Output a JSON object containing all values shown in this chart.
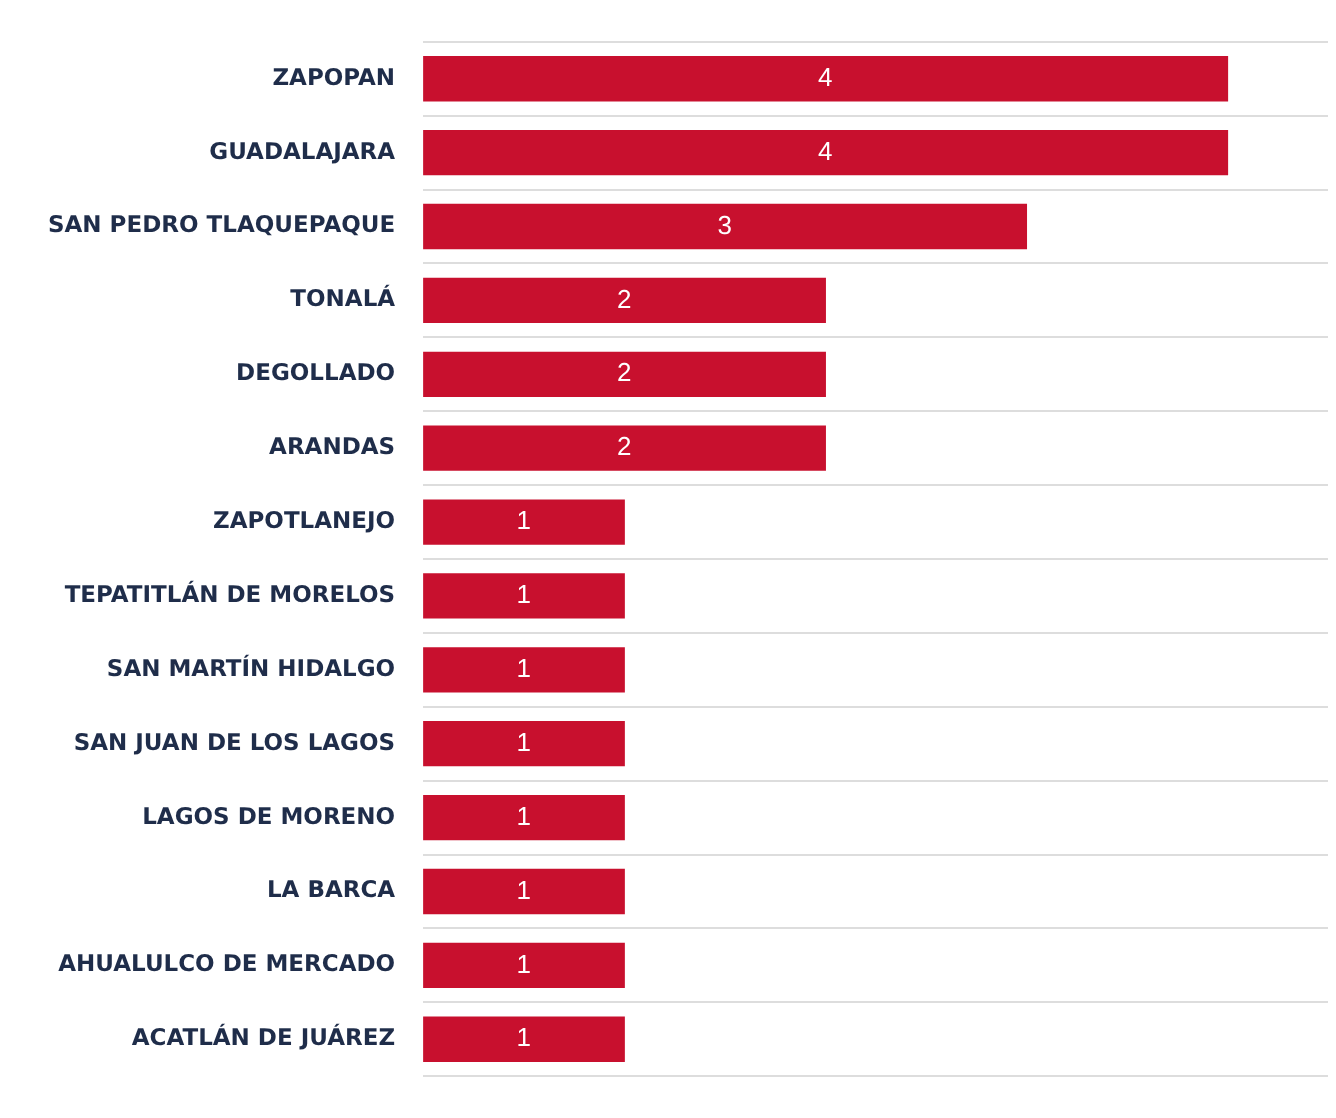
{
  "chart_data": {
    "type": "bar",
    "orientation": "horizontal",
    "categories": [
      "ZAPOPAN",
      "GUADALAJARA",
      "SAN PEDRO TLAQUEPAQUE",
      "TONALÁ",
      "DEGOLLADO",
      "ARANDAS",
      "ZAPOTLANEJO",
      "TEPATITLÁN DE MORELOS",
      "SAN MARTÍN HIDALGO",
      "SAN JUAN DE LOS LAGOS",
      "LAGOS DE MORENO",
      "LA BARCA",
      "AHUALULCO DE MERCADO",
      "ACATLÁN DE JUÁREZ"
    ],
    "values": [
      4,
      4,
      3,
      2,
      2,
      2,
      1,
      1,
      1,
      1,
      1,
      1,
      1,
      1
    ],
    "color": "#c8102e",
    "xlim": [
      0,
      4.5
    ],
    "data_labels": true,
    "grid": "y",
    "tick_labels": "y",
    "legend": false
  }
}
